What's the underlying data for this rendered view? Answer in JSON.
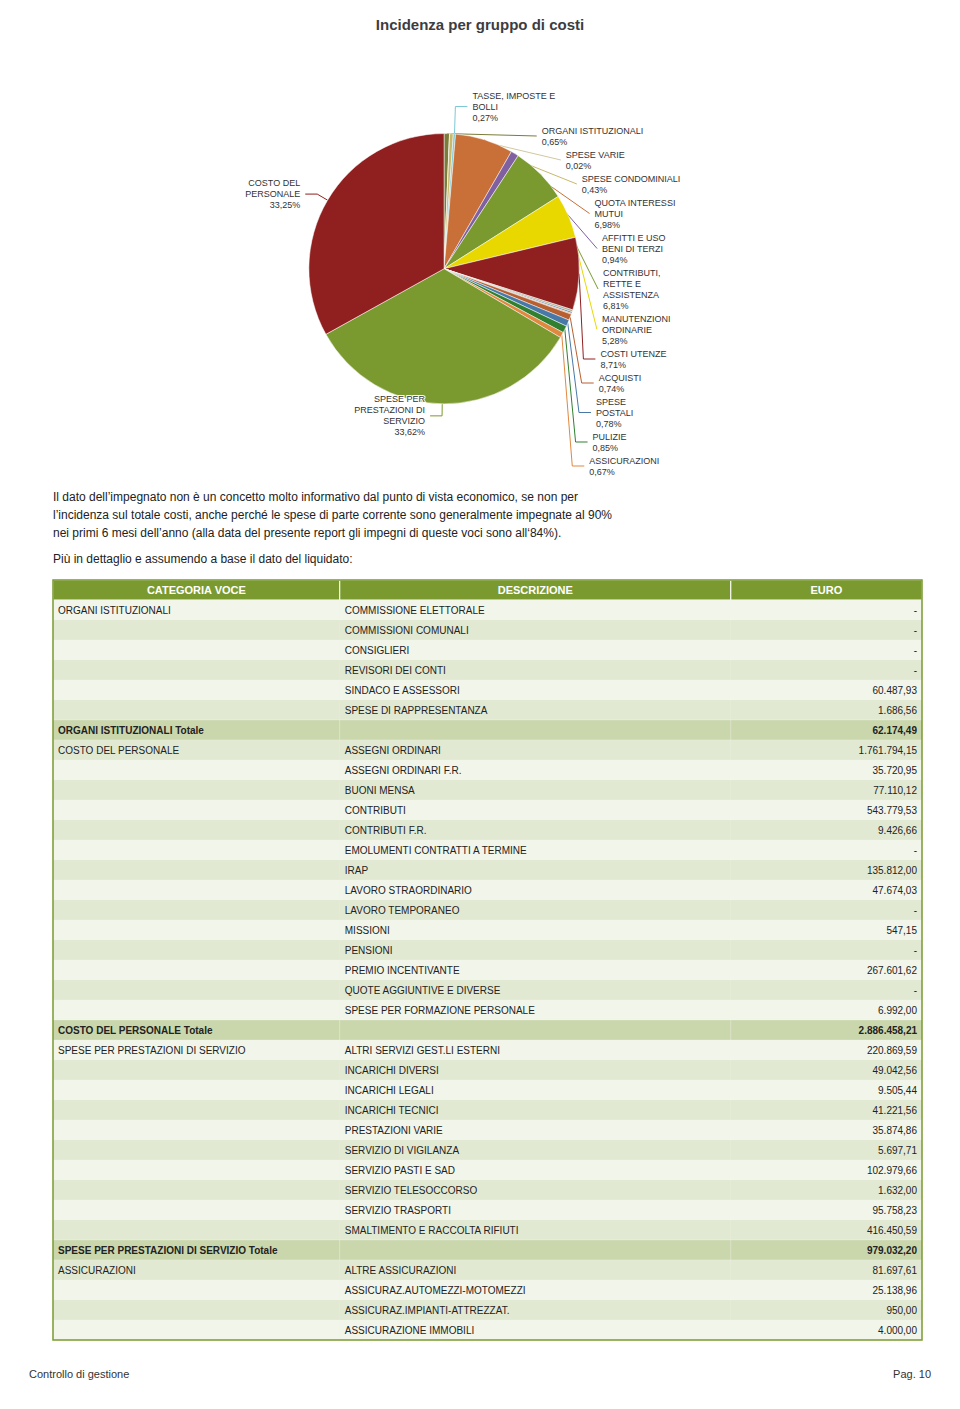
{
  "chart_data": [
    {
      "type": "pie",
      "title": "Incidenza per gruppo di costi",
      "categories": [
        "ORGANI ISTITUZIONALI",
        "SPESE VARIE",
        "SPESE CONDOMINIALI",
        "TASSE, IMPOSTE E\nBOLLI",
        "QUOTA INTERESSI\nMUTUI",
        "AFFITTI E USO\nBENI DI TERZI",
        "CONTRIBUTI,\nRETTE E\nASSISTENZA",
        "MANUTENZIONI\nORDINARIE",
        "COSTI UTENZE",
        null,
        null,
        null,
        "ACQUISTI",
        "SPESE\nPOSTALI",
        "PULIZIE",
        "ASSICURAZIONI",
        "SPESE PER\nPRESTAZIONI DI\nSERVIZIO",
        "COSTO DEL\nPERSONALE"
      ],
      "values": [
        0.65,
        0.02,
        0.43,
        0.27,
        6.98,
        0.94,
        6.81,
        5.28,
        8.71,
        0.25,
        0.18,
        0.12,
        0.74,
        0.78,
        0.85,
        0.67,
        33.62,
        33.25
      ],
      "value_labels": [
        "0,65%",
        "0,02%",
        "0,43%",
        "0,27%",
        "6,98%",
        "0,94%",
        "6,81%",
        "5,28%",
        "8,71%",
        null,
        null,
        null,
        "0,74%",
        "0,78%",
        "0,85%",
        "0,67%",
        "33,62%",
        "33,25%"
      ],
      "colors": [
        "#7b7b3a",
        "#d0c8a0",
        "#c8b86a",
        "#7ec8d8",
        "#c87038",
        "#8060a0",
        "#7a9a30",
        "#e8d800",
        "#902020",
        "#b0b090",
        "#4878a8",
        "#e09060",
        "#b86030",
        "#4878a8",
        "#308030",
        "#e08840",
        "#7a9a30",
        "#902020"
      ],
      "data_labels": true
    },
    {
      "type": "table",
      "color": "#7a9a30",
      "columns": [
        "CATEGORIA VOCE",
        "DESCRIZIONE",
        "EURO"
      ],
      "rows": [
        [
          "ORGANI ISTITUZIONALI",
          "COMMISSIONE ELETTORALE",
          "-"
        ],
        [
          null,
          "COMMISSIONI COMUNALI",
          "-"
        ],
        [
          null,
          "CONSIGLIERI",
          "-"
        ],
        [
          null,
          "REVISORI DEI CONTI",
          "-"
        ],
        [
          null,
          "SINDACO E ASSESSORI",
          "60.487,93"
        ],
        [
          null,
          "SPESE DI RAPPRESENTANZA",
          "1.686,56"
        ],
        [
          "ORGANI ISTITUZIONALI Totale",
          null,
          "62.174,49"
        ],
        [
          "COSTO DEL PERSONALE",
          "ASSEGNI ORDINARI",
          "1.761.794,15"
        ],
        [
          null,
          "ASSEGNI ORDINARI F.R.",
          "35.720,95"
        ],
        [
          null,
          "BUONI MENSA",
          "77.110,12"
        ],
        [
          null,
          "CONTRIBUTI",
          "543.779,53"
        ],
        [
          null,
          "CONTRIBUTI F.R.",
          "9.426,66"
        ],
        [
          null,
          "EMOLUMENTI CONTRATTI A TERMINE",
          "-"
        ],
        [
          null,
          "IRAP",
          "135.812,00"
        ],
        [
          null,
          "LAVORO STRAORDINARIO",
          "47.674,03"
        ],
        [
          null,
          "LAVORO TEMPORANEO",
          "-"
        ],
        [
          null,
          "MISSIONI",
          "547,15"
        ],
        [
          null,
          "PENSIONI",
          "-"
        ],
        [
          null,
          "PREMIO INCENTIVANTE",
          "267.601,62"
        ],
        [
          null,
          "QUOTE AGGIUNTIVE E DIVERSE",
          "-"
        ],
        [
          null,
          "SPESE PER FORMAZIONE PERSONALE",
          "6.992,00"
        ],
        [
          "COSTO DEL PERSONALE Totale",
          null,
          "2.886.458,21"
        ],
        [
          "SPESE PER PRESTAZIONI DI SERVIZIO",
          "ALTRI SERVIZI GEST.LI ESTERNI",
          "220.869,59"
        ],
        [
          null,
          "INCARICHI DIVERSI",
          "49.042,56"
        ],
        [
          null,
          "INCARICHI LEGALI",
          "9.505,44"
        ],
        [
          null,
          "INCARICHI TECNICI",
          "41.221,56"
        ],
        [
          null,
          "PRESTAZIONI VARIE",
          "35.874,86"
        ],
        [
          null,
          "SERVIZIO DI VIGILANZA",
          "5.697,71"
        ],
        [
          null,
          "SERVIZIO PASTI E SAD",
          "102.979,66"
        ],
        [
          null,
          "SERVIZIO TELESOCCORSO",
          "1.632,00"
        ],
        [
          null,
          "SERVIZIO TRASPORTI",
          "95.758,23"
        ],
        [
          null,
          "SMALTIMENTO E RACCOLTA RIFIUTI",
          "416.450,59"
        ],
        [
          "SPESE PER PRESTAZIONI DI SERVIZIO Totale",
          null,
          "979.032,20"
        ],
        [
          "ASSICURAZIONI",
          "ALTRE ASSICURAZIONI",
          "81.697,61"
        ],
        [
          null,
          "ASSICURAZ.AUTOMEZZI-MOTOMEZZI",
          "25.138,96"
        ],
        [
          null,
          "ASSICURAZ.IMPIANTI-ATTREZZAT.",
          "950,00"
        ],
        [
          null,
          "ASSICURAZIONE IMMOBILI",
          "4.000,00"
        ]
      ],
      "annotations": [
        "Il dato dell’impegnato non è un concetto molto informativo dal punto di vista economico, se non per\nl’incidenza sul totale costi, anche perché le spese di parte corrente sono generalmente impegnate al 90%\nnei primi 6 mesi dell’anno (alla data del presente report gli impegni di queste voci sono all‘84%).",
        "Più in dettaglio e assumendo a base il dato del liquidato:",
        "Controllo di gestione",
        "Pag. 10"
      ]
    }
  ]
}
